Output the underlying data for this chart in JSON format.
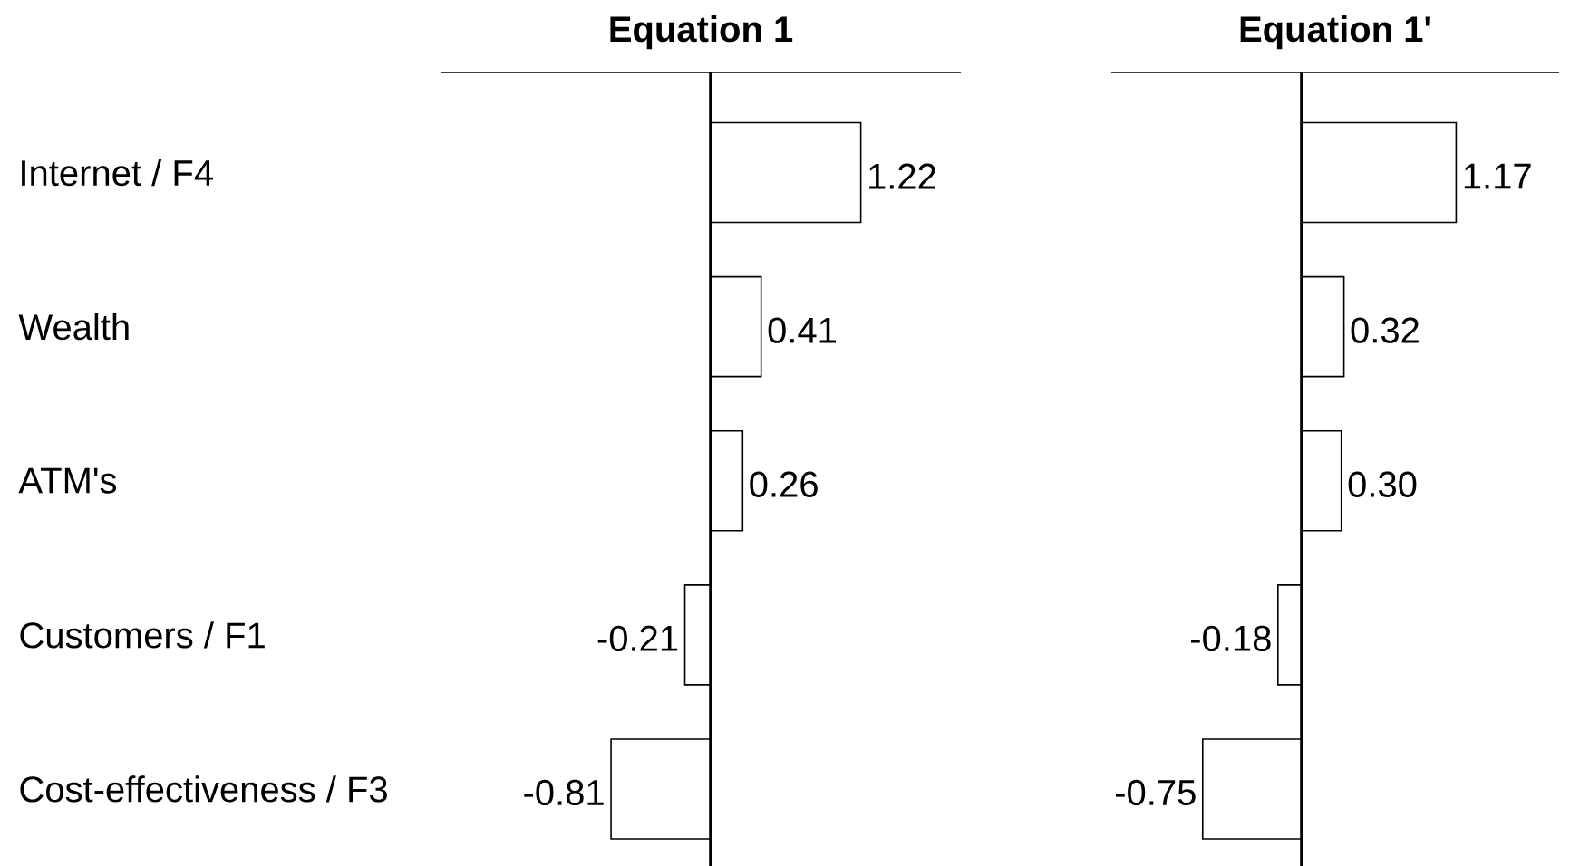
{
  "chart_data": [
    {
      "type": "bar",
      "orientation": "horizontal",
      "title": "Equation 1",
      "categories": [
        "Internet / F4",
        "Wealth",
        "ATM's",
        "Customers / F1",
        "Cost-effectiveness / F3"
      ],
      "values": [
        1.22,
        0.41,
        0.26,
        -0.21,
        -0.81
      ],
      "value_labels": [
        "1.22",
        "0.41",
        "0.26",
        "-0.21",
        "-0.81"
      ],
      "color": "#ffffff",
      "tick_labels": "y"
    },
    {
      "type": "bar",
      "orientation": "horizontal",
      "title": "Equation 1'",
      "categories": [
        null,
        null,
        null,
        null,
        null
      ],
      "values": [
        1.17,
        0.32,
        0.3,
        -0.18,
        -0.75
      ],
      "value_labels": [
        "1.17",
        "0.32",
        "0.30",
        "-0.18",
        "-0.75"
      ],
      "color": "#ffffff",
      "tick_labels": false
    }
  ]
}
